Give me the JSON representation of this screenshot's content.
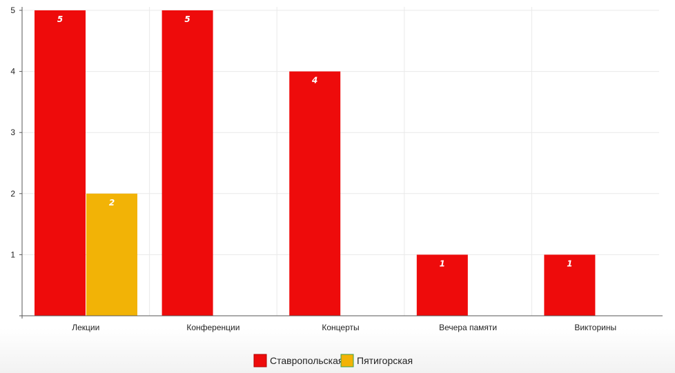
{
  "chart_data": {
    "type": "bar",
    "categories": [
      "Лекции",
      "Конференции",
      "Концерты",
      "Вечера памяти",
      "Викторины"
    ],
    "series": [
      {
        "name": "Ставропольская",
        "color": "#ee0b0b",
        "values": [
          5,
          5,
          4,
          1,
          1
        ]
      },
      {
        "name": "Пятигорская",
        "color": "#f2b306",
        "values": [
          2,
          0,
          0,
          0,
          0
        ]
      }
    ],
    "title": "",
    "xlabel": "",
    "ylabel": "",
    "ylim": [
      0,
      5
    ],
    "yticks": [
      1,
      2,
      3,
      4,
      5
    ],
    "grid": true,
    "legend_position": "bottom-center",
    "data_labels": true
  }
}
